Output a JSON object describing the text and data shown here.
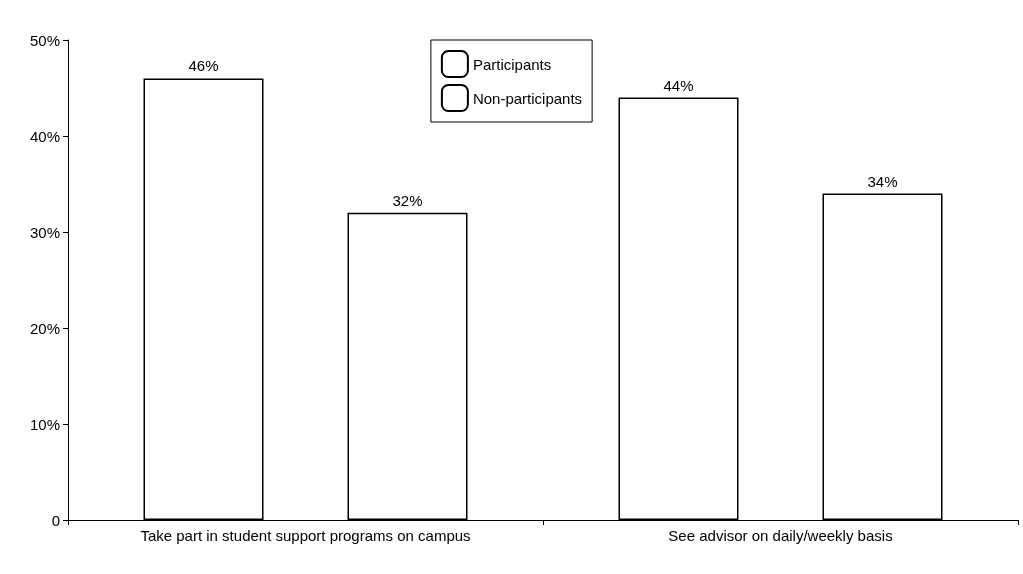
{
  "chart_data": {
    "type": "bar",
    "categories": [
      "Take part in student support programs on campus",
      "See advisor on daily/weekly basis"
    ],
    "series": [
      {
        "name": "Participants",
        "color": "#ffffff",
        "values": [
          46,
          44
        ],
        "value_labels": [
          "46%",
          "44%"
        ]
      },
      {
        "name": "Non-participants",
        "color": "#ffffff",
        "values": [
          32,
          34
        ],
        "value_labels": [
          "32%",
          "34%"
        ]
      }
    ],
    "ylim": [
      0,
      50
    ],
    "yticks": [
      0,
      {
        "value": 10,
        "label": "10%"
      },
      {
        "value": 20,
        "label": "20%"
      },
      {
        "value": 30,
        "label": "30%"
      },
      {
        "value": 40,
        "label": "40%"
      },
      {
        "value": 50,
        "label": "50%"
      }
    ],
    "grid": false,
    "legend": "top"
  }
}
